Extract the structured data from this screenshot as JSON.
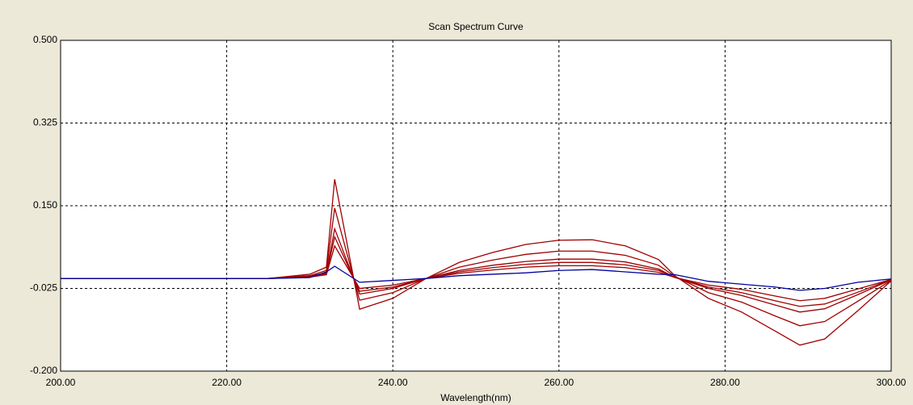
{
  "chart_data": {
    "type": "line",
    "title": "Scan Spectrum Curve",
    "x_label": "Wavelength(nm)",
    "x": [
      200,
      225,
      230,
      232,
      233,
      236,
      240,
      244,
      248,
      252,
      256,
      260,
      264,
      268,
      272,
      274,
      278,
      282,
      286,
      289,
      292,
      296,
      300
    ],
    "series": [
      {
        "color": "#a00000",
        "values": [
          -0.004,
          -0.004,
          0.005,
          0.02,
          0.206,
          -0.069,
          -0.046,
          -0.004,
          0.03,
          0.051,
          0.068,
          0.077,
          0.078,
          0.065,
          0.036,
          0.001,
          -0.046,
          -0.075,
          -0.115,
          -0.145,
          -0.132,
          -0.072,
          -0.009
        ]
      },
      {
        "color": "#a00000",
        "values": [
          -0.004,
          -0.004,
          0.002,
          0.013,
          0.145,
          -0.05,
          -0.034,
          -0.004,
          0.02,
          0.035,
          0.047,
          0.054,
          0.054,
          0.045,
          0.024,
          0.0,
          -0.034,
          -0.054,
          -0.083,
          -0.104,
          -0.095,
          -0.052,
          -0.008
        ]
      },
      {
        "color": "#a00000",
        "values": [
          -0.004,
          -0.004,
          0.001,
          0.008,
          0.101,
          -0.037,
          -0.025,
          -0.004,
          0.013,
          0.024,
          0.032,
          0.037,
          0.037,
          0.031,
          0.016,
          -0.002,
          -0.025,
          -0.04,
          -0.06,
          -0.075,
          -0.068,
          -0.038,
          -0.007
        ]
      },
      {
        "color": "#a00000",
        "values": [
          -0.004,
          -0.004,
          0.0,
          0.006,
          0.084,
          -0.031,
          -0.022,
          -0.004,
          0.01,
          0.019,
          0.026,
          0.03,
          0.03,
          0.025,
          0.013,
          -0.002,
          -0.022,
          -0.034,
          -0.051,
          -0.063,
          -0.058,
          -0.033,
          -0.006
        ]
      },
      {
        "color": "#a00000",
        "values": [
          -0.004,
          -0.004,
          -0.001,
          0.004,
          0.065,
          -0.025,
          -0.018,
          -0.004,
          0.007,
          0.014,
          0.02,
          0.023,
          0.023,
          0.019,
          0.009,
          -0.002,
          -0.018,
          -0.027,
          -0.041,
          -0.051,
          -0.046,
          -0.026,
          -0.006
        ]
      },
      {
        "color": "#0000a0",
        "values": [
          -0.004,
          -0.004,
          -0.002,
          0.01,
          0.022,
          -0.012,
          -0.008,
          -0.004,
          0.002,
          0.005,
          0.008,
          0.013,
          0.015,
          0.01,
          0.005,
          0.004,
          -0.01,
          -0.016,
          -0.022,
          -0.029,
          -0.025,
          -0.012,
          -0.005
        ]
      }
    ],
    "xlim": [
      200,
      300
    ],
    "xticks": [
      {
        "value": 200,
        "label": "200.00"
      },
      {
        "value": 220,
        "label": "220.00"
      },
      {
        "value": 240,
        "label": "240.00"
      },
      {
        "value": 260,
        "label": "260.00"
      },
      {
        "value": 280,
        "label": "280.00"
      },
      {
        "value": 300,
        "label": "300.00"
      }
    ],
    "ylim": [
      -0.2,
      0.5
    ],
    "yticks": [
      {
        "value": -0.2,
        "label": "-0.200"
      },
      {
        "value": -0.025,
        "label": "-0.025"
      },
      {
        "value": 0.15,
        "label": "0.150"
      },
      {
        "value": 0.325,
        "label": "0.325"
      },
      {
        "value": 0.5,
        "label": "0.500"
      }
    ],
    "grid": true
  }
}
